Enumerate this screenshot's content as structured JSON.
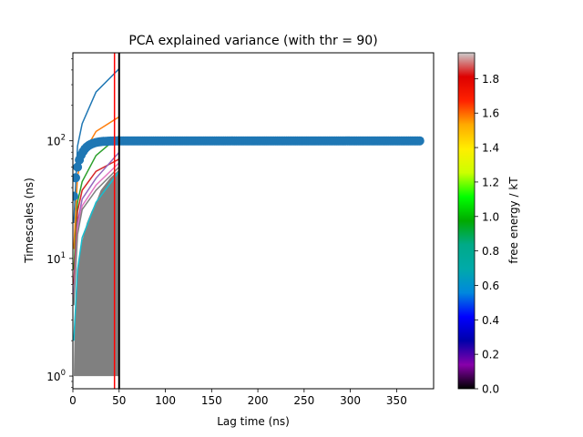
{
  "chart_data": [
    {
      "type": "line",
      "title": "PCA explained variance (with thr = 90)",
      "xlabel": "Lag time (ns)",
      "ylabel": "Timescales (ns)",
      "xlim": [
        0,
        390
      ],
      "ylim": [
        0.78,
        560
      ],
      "yscale": "log",
      "x_ticks": [
        0,
        50,
        100,
        150,
        200,
        250,
        300,
        350
      ],
      "x_tick_labels": [
        "0",
        "50",
        "100",
        "150",
        "200",
        "250",
        "300",
        "350"
      ],
      "y_ticks": [
        1,
        10,
        100
      ],
      "y_tick_labels": [
        "10^0",
        "10^1",
        "10^2"
      ],
      "shaded_region": {
        "color": "#808080",
        "x": [
          1,
          2,
          5,
          10,
          15,
          20,
          25,
          30,
          40,
          50
        ],
        "lower": [
          1,
          1,
          1,
          1,
          1,
          1,
          1,
          1,
          1,
          1
        ],
        "upper": [
          1,
          3,
          8,
          14,
          20,
          25,
          30,
          38,
          48,
          57
        ]
      },
      "series": [
        {
          "color": "#1f77b4",
          "x": [
            1,
            5,
            10,
            25,
            50
          ],
          "y": [
            20,
            90,
            140,
            260,
            410
          ]
        },
        {
          "color": "#ff7f0e",
          "x": [
            1,
            5,
            10,
            25,
            50
          ],
          "y": [
            12,
            50,
            75,
            120,
            160
          ]
        },
        {
          "color": "#2ca02c",
          "x": [
            1,
            5,
            10,
            25,
            50
          ],
          "y": [
            8,
            30,
            45,
            75,
            110
          ]
        },
        {
          "color": "#d62728",
          "x": [
            1,
            5,
            10,
            25,
            50
          ],
          "y": [
            6,
            25,
            38,
            55,
            70
          ]
        },
        {
          "color": "#9467bd",
          "x": [
            1,
            5,
            10,
            25,
            50
          ],
          "y": [
            5,
            20,
            32,
            48,
            80
          ]
        },
        {
          "color": "#e377c2",
          "x": [
            1,
            5,
            10,
            25,
            50
          ],
          "y": [
            4.5,
            18,
            28,
            42,
            65
          ]
        },
        {
          "color": "#7f7f7f",
          "x": [
            1,
            5,
            10,
            25,
            50
          ],
          "y": [
            4,
            16,
            26,
            38,
            60
          ]
        },
        {
          "color": "#17becf",
          "x": [
            1,
            5,
            10,
            25,
            50
          ],
          "y": [
            2,
            8,
            15,
            30,
            55
          ]
        }
      ],
      "scatter": {
        "color": "#1f77b4",
        "x_start": 1,
        "x_end": 375,
        "x_step": 2,
        "y_plateau": 100,
        "y_start": 25,
        "rise_constant_ns": 8
      },
      "vlines": [
        {
          "x": 45,
          "color": "#ff0000"
        },
        {
          "x": 50,
          "color": "#000000"
        }
      ]
    },
    {
      "type": "colorbar",
      "label": "free energy / kT",
      "range": [
        0,
        1.95
      ],
      "ticks": [
        0.0,
        0.2,
        0.4,
        0.6,
        0.8,
        1.0,
        1.2,
        1.4,
        1.6,
        1.8
      ],
      "tick_labels": [
        "0.0",
        "0.2",
        "0.4",
        "0.6",
        "0.8",
        "1.0",
        "1.2",
        "1.4",
        "1.6",
        "1.8"
      ],
      "colormap": "nipy_spectral",
      "colors": [
        "#000000",
        "#8800aa",
        "#0000aa",
        "#0000ff",
        "#0088dd",
        "#00aaaa",
        "#00aa88",
        "#00aa00",
        "#00ff00",
        "#ccff00",
        "#ffee00",
        "#ffaa00",
        "#ff2200",
        "#dd0000",
        "#cccccc"
      ]
    }
  ]
}
